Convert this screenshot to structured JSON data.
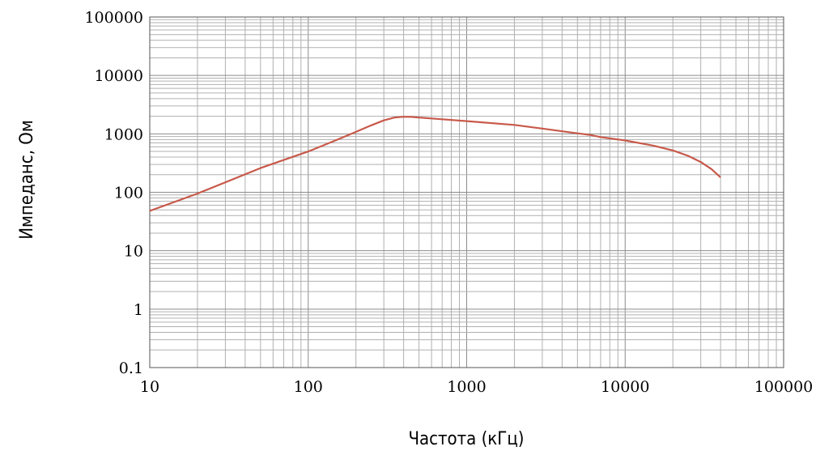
{
  "chart_data": {
    "type": "line",
    "title": "",
    "xlabel": "Частота (кГц)",
    "ylabel": "Импеданс, Ом",
    "x_scale": "log",
    "y_scale": "log",
    "xlim": [
      10,
      100000
    ],
    "ylim": [
      0.1,
      100000
    ],
    "x_ticks": [
      "10",
      "100",
      "1000",
      "10000",
      "100000"
    ],
    "y_ticks": [
      "0.1",
      "1",
      "10",
      "100",
      "1000",
      "10000",
      "100000"
    ],
    "grid": true,
    "legend": "none",
    "series": [
      {
        "color": "#c8594a",
        "x": [
          10,
          20,
          50,
          100,
          150,
          200,
          250,
          300,
          350,
          400,
          450,
          500,
          700,
          1000,
          2000,
          3000,
          5000,
          6000,
          7000,
          10000,
          15000,
          20000,
          25000,
          30000,
          35000,
          40000
        ],
        "y": [
          48,
          95,
          260,
          500,
          780,
          1080,
          1400,
          1700,
          1900,
          1960,
          1950,
          1900,
          1780,
          1650,
          1420,
          1230,
          1020,
          960,
          880,
          770,
          630,
          520,
          420,
          330,
          250,
          180
        ]
      }
    ]
  }
}
